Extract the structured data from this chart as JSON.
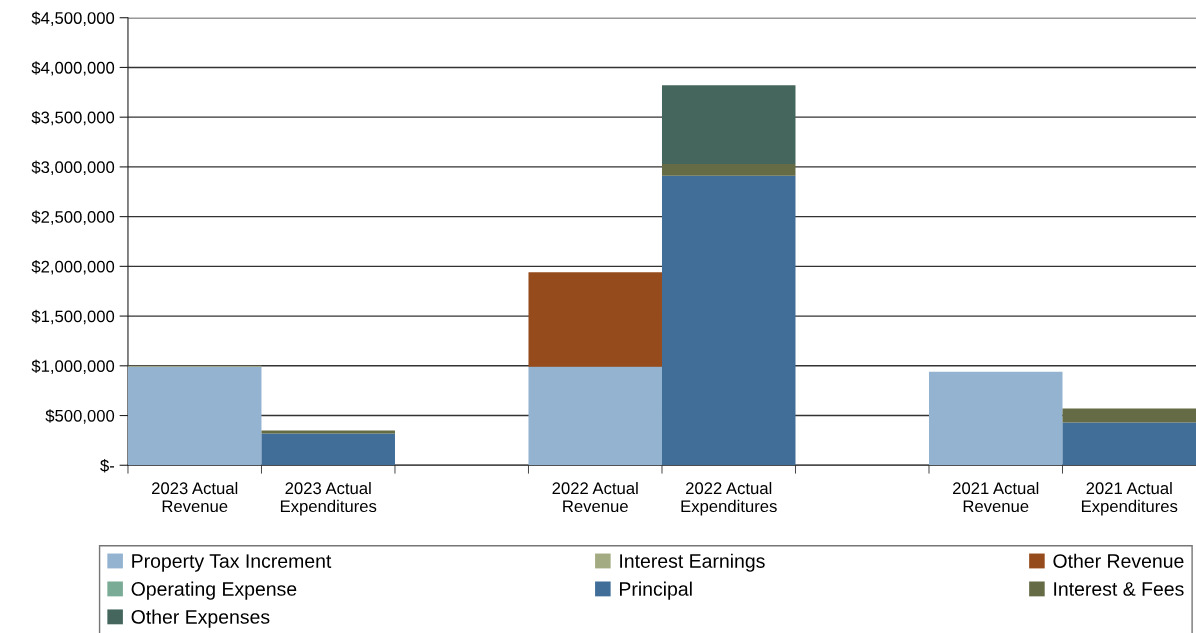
{
  "chart_data": {
    "type": "bar",
    "stacked": true,
    "categories": [
      "2023 Actual\nRevenue",
      "2023 Actual\nExpenditures",
      null,
      "2022 Actual\nRevenue",
      "2022 Actual\nExpenditures",
      null,
      "2021 Actual\nRevenue",
      "2021 Actual\nExpenditures"
    ],
    "series": [
      {
        "name": "Property Tax Increment",
        "color": "#93b3d1",
        "values": [
          990000,
          null,
          null,
          990000,
          null,
          null,
          940000,
          null
        ]
      },
      {
        "name": "Interest Earnings",
        "color": "#a3ab82",
        "values": [
          10000,
          null,
          null,
          null,
          null,
          null,
          null,
          null
        ]
      },
      {
        "name": "Other Revenue",
        "color": "#964b1c",
        "values": [
          null,
          null,
          null,
          950000,
          null,
          null,
          null,
          null
        ]
      },
      {
        "name": "Operating Expense",
        "color": "#7aab96",
        "values": [
          null,
          null,
          null,
          null,
          null,
          null,
          null,
          null
        ]
      },
      {
        "name": "Principal",
        "color": "#406e98",
        "values": [
          null,
          320000,
          null,
          null,
          2910000,
          null,
          null,
          430000
        ]
      },
      {
        "name": "Interest & Fees",
        "color": "#656b45",
        "values": [
          null,
          30000,
          null,
          null,
          120000,
          null,
          null,
          140000
        ]
      },
      {
        "name": "Other Expenses",
        "color": "#45665c",
        "values": [
          null,
          null,
          null,
          null,
          790000,
          null,
          null,
          null
        ]
      }
    ],
    "ylim": [
      0,
      4500000
    ],
    "yticks": [
      {
        "value": 0,
        "label": "$-"
      },
      {
        "value": 500000,
        "label": "$500,000"
      },
      {
        "value": 1000000,
        "label": "$1,000,000"
      },
      {
        "value": 1500000,
        "label": "$1,500,000"
      },
      {
        "value": 2000000,
        "label": "$2,000,000"
      },
      {
        "value": 2500000,
        "label": "$2,500,000"
      },
      {
        "value": 3000000,
        "label": "$3,000,000"
      },
      {
        "value": 3500000,
        "label": "$3,500,000"
      },
      {
        "value": 4000000,
        "label": "$4,000,000"
      },
      {
        "value": 4500000,
        "label": "$4,500,000"
      }
    ],
    "grid": "y",
    "legend": "bottom"
  }
}
